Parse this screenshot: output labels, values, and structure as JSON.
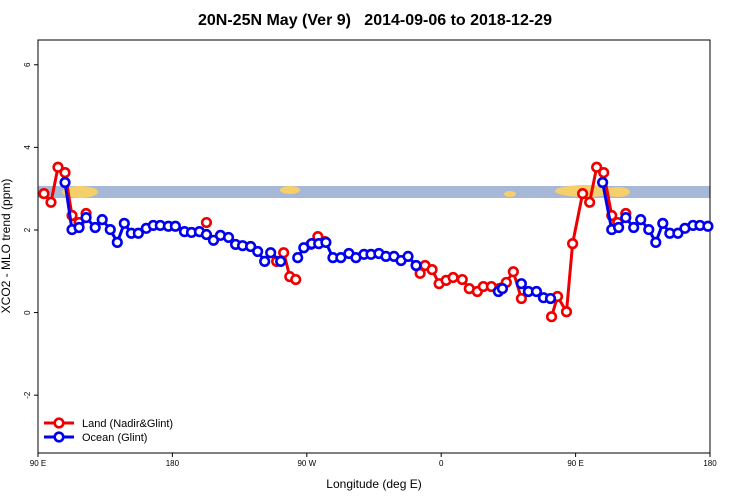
{
  "chart_data": {
    "type": "line",
    "title": "20N-25N May (Ver 9)   2014-09-06 to 2018-12-29",
    "x_label": "Longitude (deg E)",
    "y_label": "XCO2 - MLO trend (ppm)",
    "xlim": [
      90,
      540
    ],
    "xticks": [
      {
        "value": 90,
        "label": "90 E"
      },
      180,
      {
        "value": 270,
        "label": "90 W"
      },
      {
        "value": 360,
        "label": "0"
      },
      {
        "value": 450,
        "label": "90 E"
      },
      {
        "value": 540,
        "label": "180"
      }
    ],
    "ylim": [
      -3.4,
      6.6
    ],
    "yticks": [
      -2,
      0,
      2,
      4,
      6
    ],
    "legend": "bottomleft",
    "series": [
      {
        "name": "Land (Nadir&Glint)",
        "color": "#ee0000",
        "x": [
          94.0,
          98.7,
          103.4,
          108.1,
          112.8,
          117.5,
          122.2,
          null,
          202.8,
          null,
          249.8,
          254.5,
          258.6,
          262.6,
          null,
          272.7,
          277.4,
          282.1,
          null,
          345.9,
          349.2,
          353.9,
          358.6,
          363.3,
          368.0,
          374.1,
          378.8,
          384.2,
          388.2,
          393.6,
          403.6,
          408.3,
          413.7,
          null,
          433.9,
          437.9,
          443.9,
          448.0,
          454.7,
          459.4,
          464.1,
          468.8,
          474.2,
          478.2,
          483.6
        ],
        "values": [
          2.88,
          2.67,
          3.52,
          3.39,
          2.35,
          2.18,
          2.4,
          null,
          2.18,
          null,
          1.24,
          1.45,
          0.87,
          0.8,
          null,
          1.65,
          1.84,
          1.72,
          null,
          0.95,
          1.14,
          1.04,
          0.7,
          0.78,
          0.85,
          0.8,
          0.58,
          0.51,
          0.63,
          0.63,
          0.73,
          0.99,
          0.34,
          null,
          -0.1,
          0.39,
          0.02,
          1.67,
          2.88,
          2.67,
          3.52,
          3.39,
          2.35,
          2.18,
          2.4
        ]
      },
      {
        "name": "Ocean (Glint)",
        "color": "#0000ee",
        "x": [
          108.1,
          112.8,
          117.5,
          122.2,
          128.3,
          133.0,
          138.4,
          143.1,
          147.8,
          152.5,
          157.2,
          162.5,
          167.2,
          171.9,
          177.3,
          182.0,
          188.1,
          192.8,
          198.1,
          202.8,
          207.5,
          212.2,
          217.6,
          222.3,
          227.0,
          232.4,
          237.1,
          241.8,
          245.8,
          252.5,
          null,
          263.9,
          268.0,
          273.3,
          278.0,
          282.8,
          287.5,
          292.8,
          298.2,
          302.9,
          308.3,
          313.0,
          318.3,
          323.0,
          328.4,
          333.1,
          337.8,
          343.2,
          null,
          398.3,
          401.0,
          null,
          413.7,
          418.4,
          423.8,
          428.5,
          433.2,
          null,
          468.1,
          474.2,
          478.8,
          483.6,
          488.9,
          493.6,
          499.0,
          503.7,
          508.4,
          513.1,
          518.5,
          523.2,
          528.6,
          533.3,
          538.6
        ],
        "values": [
          3.15,
          2.01,
          2.06,
          2.3,
          2.06,
          2.25,
          2.01,
          1.7,
          2.16,
          1.92,
          1.92,
          2.04,
          2.11,
          2.11,
          2.09,
          2.09,
          1.96,
          1.94,
          1.96,
          1.89,
          1.75,
          1.87,
          1.82,
          1.65,
          1.62,
          1.6,
          1.48,
          1.24,
          1.45,
          1.24,
          null,
          1.33,
          1.57,
          1.67,
          1.67,
          1.7,
          1.33,
          1.33,
          1.43,
          1.33,
          1.41,
          1.41,
          1.43,
          1.36,
          1.36,
          1.26,
          1.36,
          1.14,
          null,
          0.51,
          0.58,
          null,
          0.7,
          0.51,
          0.51,
          0.36,
          0.34,
          null,
          3.15,
          2.01,
          2.06,
          2.3,
          2.06,
          2.25,
          2.01,
          1.7,
          2.16,
          1.92,
          1.92,
          2.04,
          2.11,
          2.11,
          2.09
        ]
      }
    ]
  }
}
